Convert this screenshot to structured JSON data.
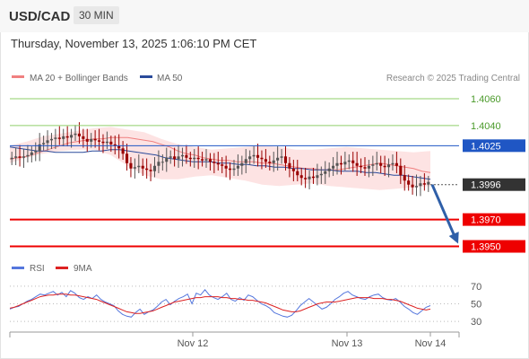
{
  "header": {
    "symbol": "USD/CAD",
    "timeframe": "30 MIN",
    "datetime": "Thursday, November 13, 2025 1:06:10 PM CET"
  },
  "legend": {
    "ma20_label": "MA 20 + Bollinger Bands",
    "ma50_label": "MA 50",
    "credit": "Research © 2025 Trading Central"
  },
  "rsi_legend": {
    "rsi_label": "RSI",
    "ma_label": "9MA"
  },
  "colors": {
    "up_candle": "#555555",
    "down_candle": "#990000",
    "bollinger_fill": "#fde3e3",
    "ma20": "#f08080",
    "ma50": "#2a4b9b",
    "target_green": "#8fcf6a",
    "pivot_blue": "#1f56c4",
    "support_red": "#ee0000",
    "current_dark": "#333333",
    "rsi_line": "#5577dd",
    "rsi_ma": "#dd2222",
    "arrow": "#2f5fa8"
  },
  "chart_data": [
    {
      "type": "candlestick",
      "title": "",
      "x_tick_labels": [
        "Nov 12",
        "Nov 13",
        "Nov 14"
      ],
      "y_range": [
        1.3945,
        1.407
      ],
      "levels": [
        {
          "label": "1.4060",
          "value": 1.406,
          "kind": "target"
        },
        {
          "label": "1.4040",
          "value": 1.404,
          "kind": "target"
        },
        {
          "label": "1.4025",
          "value": 1.4025,
          "kind": "pivot"
        },
        {
          "label": "1.3996",
          "value": 1.3996,
          "kind": "current"
        },
        {
          "label": "1.3970",
          "value": 1.397,
          "kind": "support"
        },
        {
          "label": "1.3950",
          "value": 1.395,
          "kind": "support"
        }
      ],
      "close_series": [
        1.4016,
        1.4017,
        1.4016,
        1.4017,
        1.4018,
        1.402,
        1.4021,
        1.4026,
        1.4027,
        1.4029,
        1.403,
        1.4031,
        1.403,
        1.4032,
        1.4031,
        1.4033,
        1.4034,
        1.4032,
        1.403,
        1.4028,
        1.403,
        1.4029,
        1.4028,
        1.4027,
        1.4028,
        1.4026,
        1.4025,
        1.4023,
        1.4019,
        1.4012,
        1.4008,
        1.4009,
        1.401,
        1.4008,
        1.4007,
        1.4006,
        1.401,
        1.4013,
        1.4013,
        1.4016,
        1.4017,
        1.4015,
        1.4017,
        1.4018,
        1.4016,
        1.4015,
        1.4016,
        1.4015,
        1.4014,
        1.4015,
        1.4013,
        1.4012,
        1.4011,
        1.401,
        1.4008,
        1.4007,
        1.4008,
        1.401,
        1.4012,
        1.4015,
        1.4017,
        1.4018,
        1.4016,
        1.4015,
        1.4013,
        1.4012,
        1.4014,
        1.4016,
        1.4017,
        1.4012,
        1.4008,
        1.4006,
        1.4003,
        1.4001,
        1.4,
        1.4002,
        1.4001,
        1.4003,
        1.4004,
        1.4006,
        1.4008,
        1.401,
        1.4012,
        1.4011,
        1.4013,
        1.4014,
        1.4012,
        1.401,
        1.4009,
        1.4008,
        1.401,
        1.4011,
        1.4012,
        1.401,
        1.4009,
        1.4011,
        1.4012,
        1.401,
        1.4003,
        1.3999,
        1.3996,
        1.3994,
        1.3995,
        1.3997,
        1.3996,
        1.3998
      ],
      "ma20_series": [
        1.4015,
        1.4016,
        1.4017,
        1.4019,
        1.4021,
        1.4023,
        1.4025,
        1.4027,
        1.4028,
        1.4029,
        1.403,
        1.403,
        1.4031,
        1.4031,
        1.4031,
        1.403,
        1.4029,
        1.4028,
        1.4026,
        1.4024,
        1.4021,
        1.4019,
        1.4018,
        1.4016,
        1.4015,
        1.4014,
        1.4014,
        1.4013,
        1.4013,
        1.4013,
        1.4012,
        1.4012,
        1.4011,
        1.401,
        1.4009,
        1.4008,
        1.4008,
        1.4007,
        1.4007,
        1.4007,
        1.4008,
        1.4009,
        1.401,
        1.4011,
        1.4012,
        1.4011,
        1.401,
        1.4009,
        1.4008,
        1.4006,
        1.4005
      ],
      "ma50_series": [
        1.4024,
        1.4023,
        1.4022,
        1.4021,
        1.4021,
        1.402,
        1.402,
        1.402,
        1.402,
        1.4021,
        1.4021,
        1.4022,
        1.4022,
        1.4021,
        1.402,
        1.4019,
        1.4018,
        1.4016,
        1.4015,
        1.4014,
        1.4013,
        1.4013,
        1.4013,
        1.4012,
        1.4012,
        1.4011,
        1.4011,
        1.401,
        1.401,
        1.4009,
        1.4009,
        1.4008,
        1.4008,
        1.4007,
        1.4007,
        1.4007,
        1.4006,
        1.4006,
        1.4006,
        1.4005,
        1.4005,
        1.4004,
        1.4003,
        1.4003,
        1.4002,
        1.4001,
        1.4
      ],
      "bollinger_upper": [
        1.4025,
        1.4028,
        1.4032,
        1.4034,
        1.4036,
        1.4038,
        1.4039,
        1.4037,
        1.4035,
        1.403,
        1.4026,
        1.4024,
        1.4022,
        1.4023,
        1.4024,
        1.4025,
        1.4024,
        1.4022,
        1.4022,
        1.4023,
        1.4024,
        1.4023,
        1.4022,
        1.4021,
        1.402,
        1.4021
      ],
      "bollinger_lower": [
        1.4012,
        1.4016,
        1.4019,
        1.4021,
        1.4022,
        1.4022,
        1.4018,
        1.401,
        1.4003,
        1.4,
        1.4,
        1.4002,
        1.4003,
        1.4001,
        1.3999,
        1.3996,
        1.3995,
        1.3996,
        1.3997,
        1.3995,
        1.3994,
        1.3993,
        1.3992,
        1.3993,
        1.3994,
        1.3995
      ],
      "forecast": {
        "from": 1.3996,
        "to": 1.395
      }
    },
    {
      "type": "line",
      "title": "",
      "y_tick_labels": [
        "70",
        "50",
        "30"
      ],
      "ylim": [
        20,
        80
      ],
      "series": [
        {
          "name": "RSI",
          "values": [
            44,
            46,
            47,
            50,
            53,
            55,
            58,
            61,
            60,
            62,
            64,
            60,
            63,
            58,
            65,
            62,
            57,
            55,
            58,
            56,
            60,
            55,
            52,
            50,
            48,
            42,
            38,
            36,
            35,
            40,
            44,
            38,
            41,
            43,
            47,
            52,
            55,
            49,
            53,
            56,
            58,
            61,
            50,
            62,
            60,
            66,
            60,
            57,
            55,
            58,
            62,
            55,
            53,
            57,
            54,
            60,
            58,
            54,
            50,
            48,
            45,
            40,
            38,
            36,
            35,
            37,
            42,
            48,
            52,
            56,
            52,
            48,
            44,
            46,
            50,
            55,
            58,
            62,
            64,
            60,
            58,
            56,
            55,
            58,
            60,
            61,
            57,
            55,
            54,
            56,
            52,
            47,
            44,
            40,
            38,
            42,
            46,
            48
          ]
        },
        {
          "name": "9MA",
          "values": [
            45,
            46,
            48,
            50,
            52,
            54,
            56,
            58,
            59,
            60,
            60,
            61,
            61,
            61,
            60,
            60,
            59,
            58,
            57,
            56,
            55,
            53,
            51,
            49,
            47,
            45,
            43,
            41,
            40,
            39,
            39,
            40,
            41,
            42,
            44,
            46,
            48,
            50,
            52,
            53,
            54,
            55,
            56,
            57,
            57,
            58,
            58,
            58,
            58,
            57,
            57,
            56,
            56,
            55,
            55,
            54,
            54,
            53,
            52,
            51,
            49,
            47,
            45,
            43,
            42,
            41,
            41,
            42,
            44,
            46,
            48,
            50,
            51,
            52,
            52,
            52,
            53,
            54,
            55,
            56,
            57,
            57,
            57,
            57,
            56,
            56,
            56,
            55,
            55,
            54,
            53,
            51,
            49,
            47,
            45,
            44,
            43,
            44
          ]
        }
      ]
    }
  ]
}
